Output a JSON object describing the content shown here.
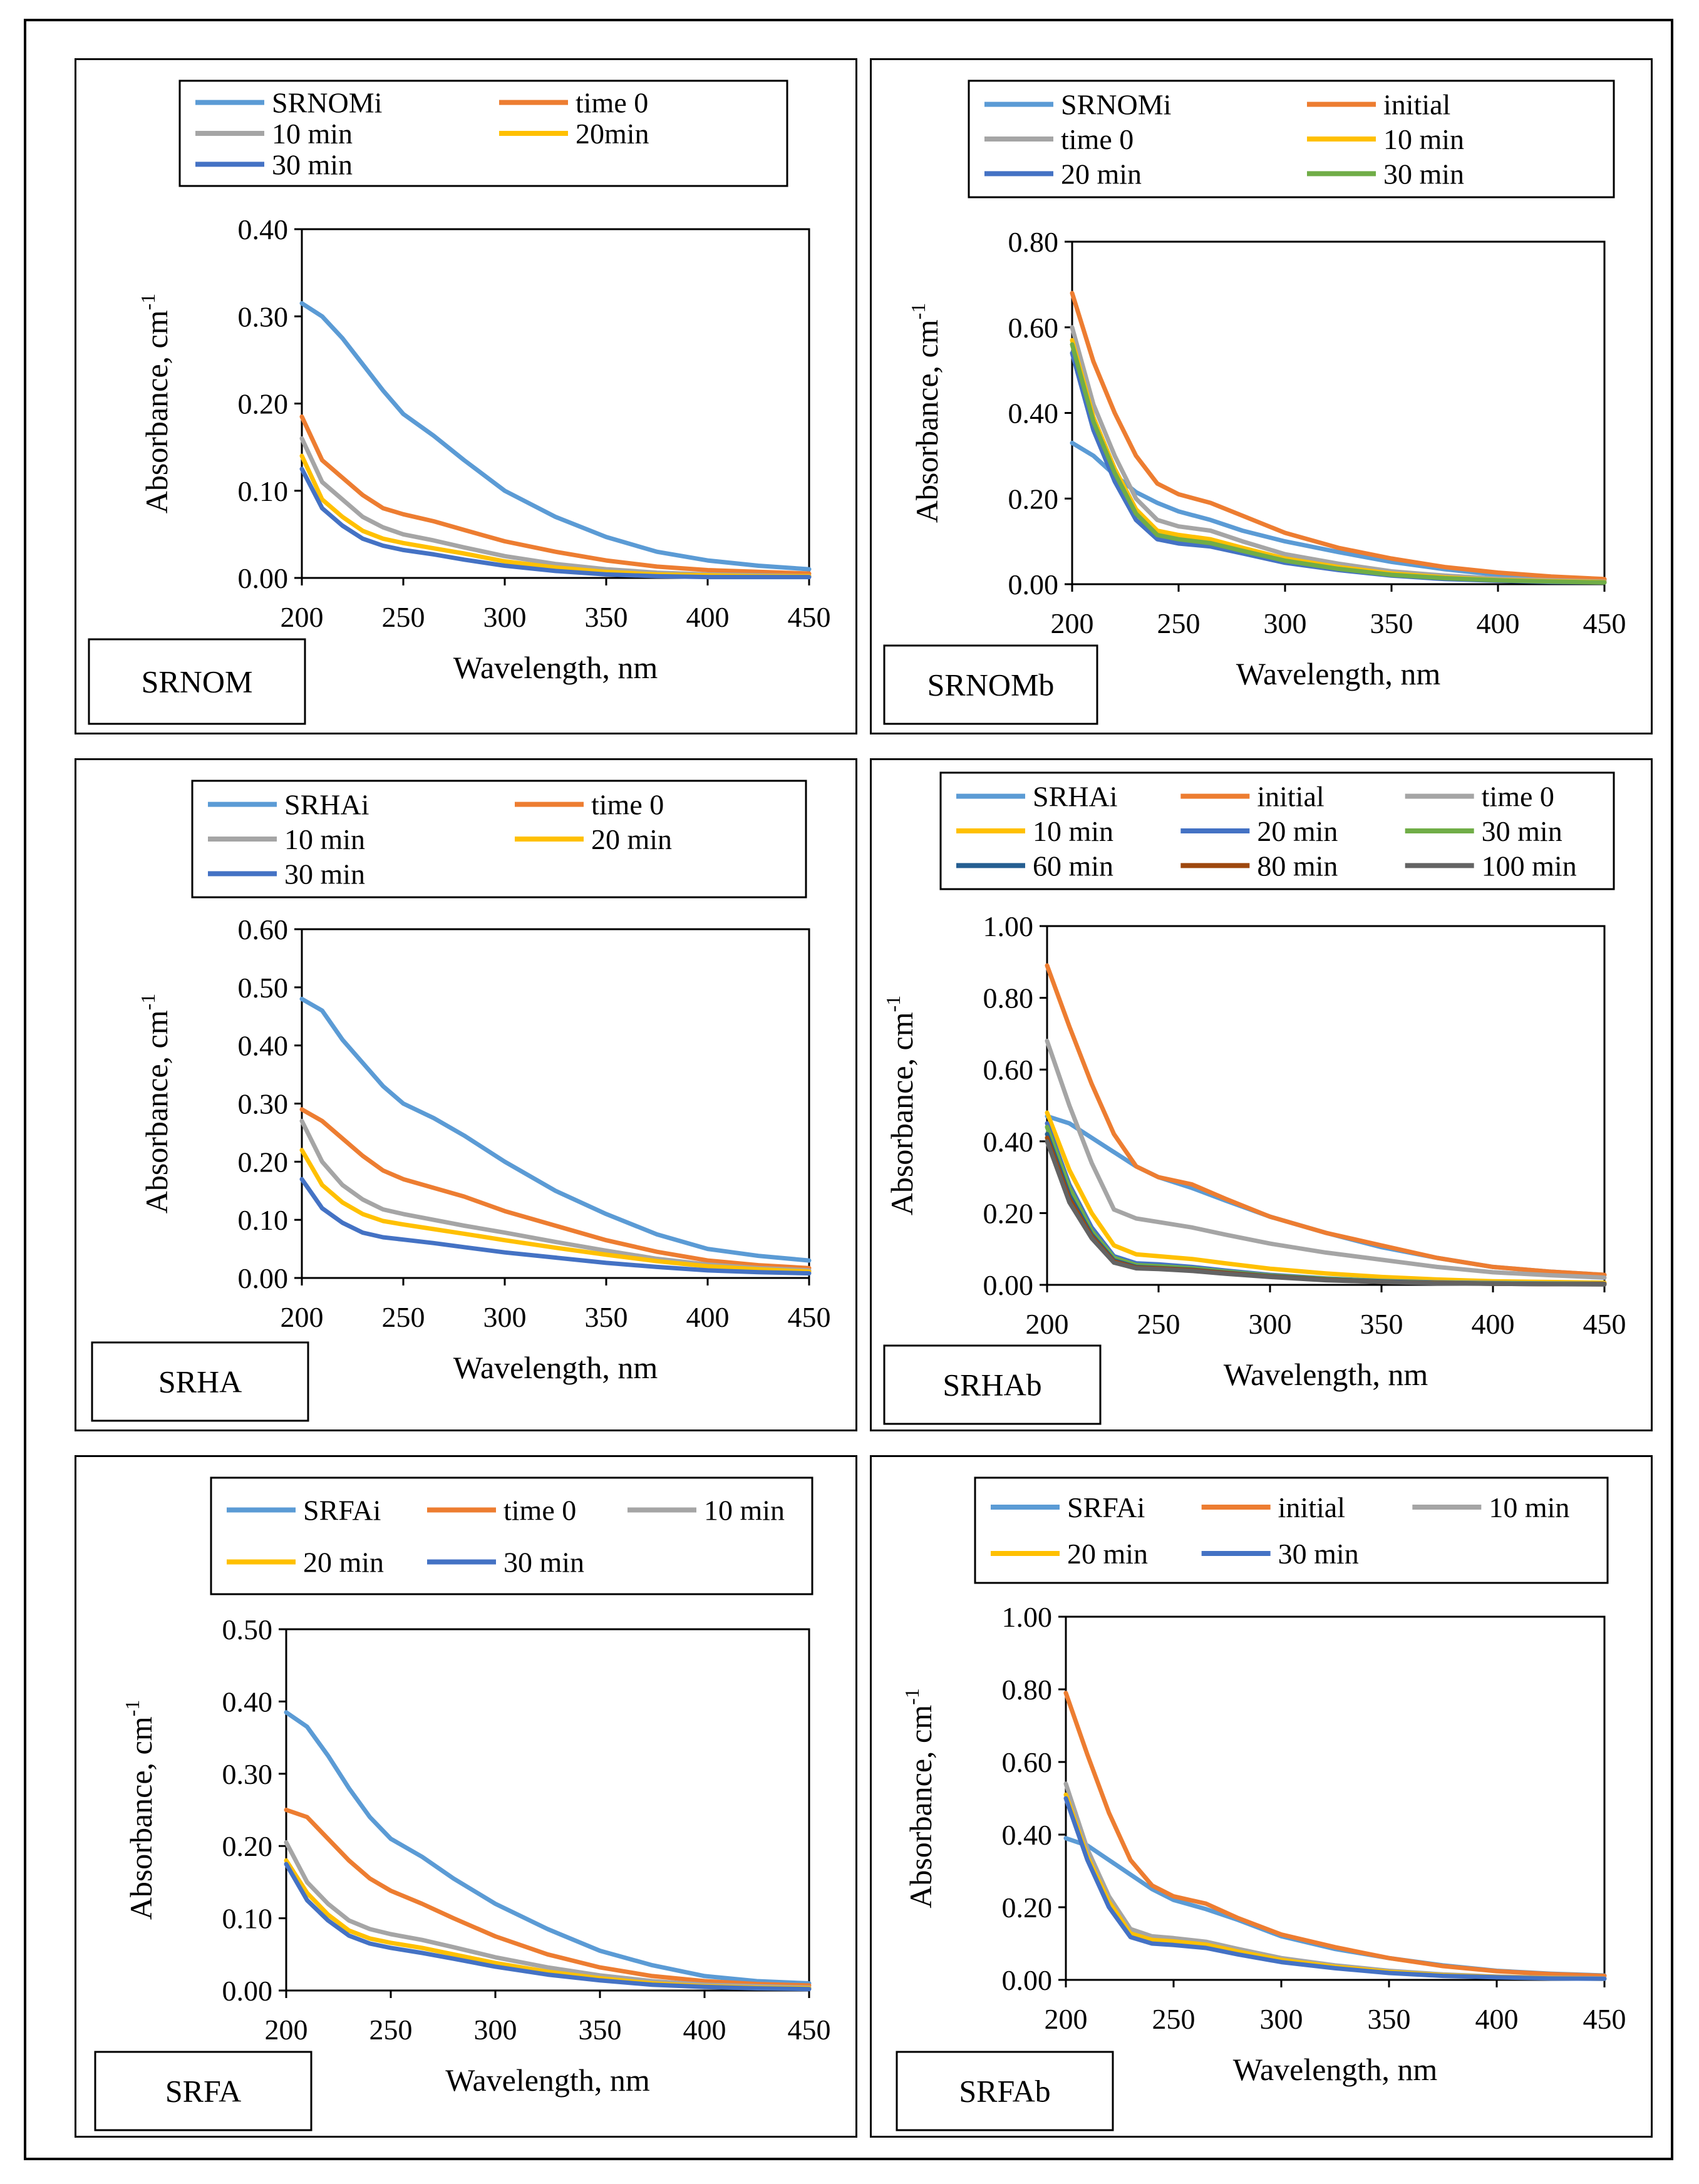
{
  "colors": {
    "SRNOMi": "#5b9bd5",
    "SRHAi": "#5b9bd5",
    "SRFAi": "#5b9bd5",
    "initial": "#ed7d31",
    "time 0": "#a5a5a5",
    "10 min": "#ffc000",
    "20 min": "#4472c4",
    "30 min": "#70ad47",
    "60 min": "#255e91",
    "80 min": "#9e480e",
    "100 min": "#636363"
  },
  "chart_data": [
    {
      "type": "line",
      "tag": "SRNOM",
      "xlabel": "Wavelength, nm",
      "ylabel": "Absorbance, cm",
      "ylabel_sup": "-1",
      "xlim": [
        200,
        450
      ],
      "ylim": [
        0,
        0.4
      ],
      "xticks": [
        "200",
        "250",
        "300",
        "350",
        "400",
        "450"
      ],
      "yticks": [
        "0.00",
        "0.10",
        "0.20",
        "0.30",
        "0.40"
      ],
      "legend_cols": 2,
      "x": [
        200,
        210,
        220,
        230,
        240,
        250,
        265,
        280,
        300,
        325,
        350,
        375,
        400,
        425,
        450
      ],
      "series": [
        {
          "name": "SRNOMi",
          "color": "#5b9bd5",
          "values": [
            0.315,
            0.3,
            0.275,
            0.245,
            0.215,
            0.188,
            0.163,
            0.135,
            0.1,
            0.07,
            0.047,
            0.03,
            0.02,
            0.014,
            0.01
          ]
        },
        {
          "name": "time 0",
          "color": "#ed7d31",
          "values": [
            0.185,
            0.135,
            0.115,
            0.095,
            0.08,
            0.073,
            0.065,
            0.055,
            0.042,
            0.03,
            0.02,
            0.013,
            0.009,
            0.007,
            0.005
          ]
        },
        {
          "name": "10 min",
          "color": "#a5a5a5",
          "values": [
            0.16,
            0.11,
            0.09,
            0.07,
            0.058,
            0.05,
            0.043,
            0.035,
            0.025,
            0.016,
            0.01,
            0.006,
            0.004,
            0.003,
            0.002
          ]
        },
        {
          "name": "20min",
          "color": "#ffc000",
          "values": [
            0.14,
            0.09,
            0.07,
            0.054,
            0.045,
            0.04,
            0.034,
            0.028,
            0.019,
            0.012,
            0.007,
            0.004,
            0.003,
            0.002,
            0.002
          ]
        },
        {
          "name": "30 min",
          "color": "#4472c4",
          "values": [
            0.125,
            0.08,
            0.06,
            0.045,
            0.037,
            0.032,
            0.027,
            0.021,
            0.014,
            0.008,
            0.004,
            0.002,
            0.001,
            0.001,
            0.001
          ]
        }
      ]
    },
    {
      "type": "line",
      "tag": "SRNOMb",
      "xlabel": "Wavelength, nm",
      "ylabel": "Absorbance, cm",
      "ylabel_sup": "-1",
      "xlim": [
        200,
        450
      ],
      "ylim": [
        0,
        0.8
      ],
      "xticks": [
        "200",
        "250",
        "300",
        "350",
        "400",
        "450"
      ],
      "yticks": [
        "0.00",
        "0.20",
        "0.40",
        "0.60",
        "0.80"
      ],
      "legend_cols": 2,
      "x": [
        200,
        210,
        220,
        230,
        240,
        250,
        265,
        280,
        300,
        325,
        350,
        375,
        400,
        425,
        450
      ],
      "series": [
        {
          "name": "SRNOMi",
          "color": "#5b9bd5",
          "values": [
            0.33,
            0.3,
            0.255,
            0.215,
            0.19,
            0.17,
            0.15,
            0.125,
            0.1,
            0.075,
            0.052,
            0.035,
            0.022,
            0.015,
            0.01
          ]
        },
        {
          "name": "initial",
          "color": "#ed7d31",
          "values": [
            0.68,
            0.52,
            0.4,
            0.3,
            0.235,
            0.21,
            0.19,
            0.16,
            0.12,
            0.085,
            0.06,
            0.04,
            0.027,
            0.018,
            0.012
          ]
        },
        {
          "name": "time 0",
          "color": "#a5a5a5",
          "values": [
            0.6,
            0.42,
            0.3,
            0.2,
            0.15,
            0.135,
            0.125,
            0.1,
            0.07,
            0.048,
            0.03,
            0.02,
            0.013,
            0.009,
            0.006
          ]
        },
        {
          "name": "10 min",
          "color": "#ffc000",
          "values": [
            0.57,
            0.39,
            0.27,
            0.175,
            0.125,
            0.115,
            0.105,
            0.085,
            0.06,
            0.04,
            0.025,
            0.016,
            0.01,
            0.007,
            0.005
          ]
        },
        {
          "name": "20 min",
          "color": "#4472c4",
          "values": [
            0.54,
            0.36,
            0.24,
            0.15,
            0.105,
            0.095,
            0.088,
            0.072,
            0.05,
            0.033,
            0.02,
            0.012,
            0.008,
            0.005,
            0.004
          ]
        },
        {
          "name": "30 min",
          "color": "#70ad47",
          "values": [
            0.56,
            0.38,
            0.26,
            0.165,
            0.115,
            0.105,
            0.096,
            0.078,
            0.055,
            0.036,
            0.022,
            0.014,
            0.009,
            0.006,
            0.004
          ]
        }
      ]
    },
    {
      "type": "line",
      "tag": "SRHA",
      "xlabel": "Wavelength, nm",
      "ylabel": "Absorbance, cm",
      "ylabel_sup": "-1",
      "xlim": [
        200,
        450
      ],
      "ylim": [
        0,
        0.6
      ],
      "xticks": [
        "200",
        "250",
        "300",
        "350",
        "400",
        "450"
      ],
      "yticks": [
        "0.00",
        "0.10",
        "0.20",
        "0.30",
        "0.40",
        "0.50",
        "0.60"
      ],
      "legend_cols": 2,
      "x": [
        200,
        210,
        220,
        230,
        240,
        250,
        265,
        280,
        300,
        325,
        350,
        375,
        400,
        425,
        450
      ],
      "series": [
        {
          "name": "SRHAi",
          "color": "#5b9bd5",
          "values": [
            0.48,
            0.46,
            0.41,
            0.37,
            0.33,
            0.3,
            0.275,
            0.245,
            0.2,
            0.15,
            0.11,
            0.075,
            0.05,
            0.038,
            0.03
          ]
        },
        {
          "name": "time 0",
          "color": "#ed7d31",
          "values": [
            0.29,
            0.27,
            0.24,
            0.21,
            0.185,
            0.17,
            0.155,
            0.14,
            0.115,
            0.09,
            0.065,
            0.045,
            0.03,
            0.022,
            0.017
          ]
        },
        {
          "name": "10 min",
          "color": "#a5a5a5",
          "values": [
            0.27,
            0.2,
            0.16,
            0.135,
            0.118,
            0.11,
            0.1,
            0.09,
            0.078,
            0.062,
            0.047,
            0.033,
            0.023,
            0.017,
            0.013
          ]
        },
        {
          "name": "20 min",
          "color": "#ffc000",
          "values": [
            0.22,
            0.16,
            0.13,
            0.11,
            0.098,
            0.092,
            0.084,
            0.076,
            0.065,
            0.052,
            0.04,
            0.029,
            0.02,
            0.015,
            0.011
          ]
        },
        {
          "name": "30 min",
          "color": "#4472c4",
          "values": [
            0.17,
            0.12,
            0.095,
            0.078,
            0.07,
            0.066,
            0.06,
            0.053,
            0.044,
            0.035,
            0.026,
            0.019,
            0.013,
            0.01,
            0.008
          ]
        }
      ]
    },
    {
      "type": "line",
      "tag": "SRHAb",
      "xlabel": "Wavelength, nm",
      "ylabel": "Absorbance, cm",
      "ylabel_sup": "-1",
      "xlim": [
        200,
        450
      ],
      "ylim": [
        0,
        1.0
      ],
      "xticks": [
        "200",
        "250",
        "300",
        "350",
        "400",
        "450"
      ],
      "yticks": [
        "0.00",
        "0.20",
        "0.40",
        "0.60",
        "0.80",
        "1.00"
      ],
      "legend_cols": 3,
      "x": [
        200,
        210,
        220,
        230,
        240,
        250,
        265,
        280,
        300,
        325,
        350,
        375,
        400,
        425,
        450
      ],
      "series": [
        {
          "name": "SRHAi",
          "color": "#5b9bd5",
          "values": [
            0.47,
            0.45,
            0.41,
            0.37,
            0.33,
            0.3,
            0.27,
            0.235,
            0.19,
            0.145,
            0.105,
            0.075,
            0.05,
            0.037,
            0.028
          ]
        },
        {
          "name": "initial",
          "color": "#ed7d31",
          "values": [
            0.89,
            0.72,
            0.56,
            0.42,
            0.33,
            0.3,
            0.28,
            0.24,
            0.19,
            0.145,
            0.11,
            0.075,
            0.05,
            0.037,
            0.028
          ]
        },
        {
          "name": "time 0",
          "color": "#a5a5a5",
          "values": [
            0.68,
            0.5,
            0.34,
            0.21,
            0.185,
            0.175,
            0.16,
            0.14,
            0.115,
            0.09,
            0.07,
            0.05,
            0.035,
            0.027,
            0.02
          ]
        },
        {
          "name": "10 min",
          "color": "#ffc000",
          "values": [
            0.48,
            0.32,
            0.2,
            0.11,
            0.085,
            0.08,
            0.072,
            0.06,
            0.045,
            0.032,
            0.022,
            0.015,
            0.01,
            0.008,
            0.006
          ]
        },
        {
          "name": "20 min",
          "color": "#4472c4",
          "values": [
            0.45,
            0.28,
            0.16,
            0.08,
            0.06,
            0.057,
            0.05,
            0.04,
            0.028,
            0.018,
            0.011,
            0.007,
            0.005,
            0.004,
            0.003
          ]
        },
        {
          "name": "30 min",
          "color": "#70ad47",
          "values": [
            0.44,
            0.27,
            0.15,
            0.075,
            0.055,
            0.052,
            0.046,
            0.037,
            0.026,
            0.017,
            0.01,
            0.006,
            0.004,
            0.003,
            0.002
          ]
        },
        {
          "name": "60 min",
          "color": "#255e91",
          "values": [
            0.42,
            0.25,
            0.14,
            0.068,
            0.05,
            0.047,
            0.042,
            0.034,
            0.024,
            0.015,
            0.009,
            0.005,
            0.003,
            0.002,
            0.002
          ]
        },
        {
          "name": "80 min",
          "color": "#9e480e",
          "values": [
            0.41,
            0.24,
            0.135,
            0.065,
            0.048,
            0.046,
            0.041,
            0.033,
            0.023,
            0.014,
            0.008,
            0.005,
            0.003,
            0.002,
            0.002
          ]
        },
        {
          "name": "100 min",
          "color": "#636363",
          "values": [
            0.4,
            0.23,
            0.13,
            0.062,
            0.046,
            0.044,
            0.039,
            0.031,
            0.022,
            0.013,
            0.008,
            0.004,
            0.003,
            0.002,
            0.001
          ]
        }
      ]
    },
    {
      "type": "line",
      "tag": "SRFA",
      "xlabel": "Wavelength, nm",
      "ylabel": "Absorbance, cm",
      "ylabel_sup": "-1",
      "xlim": [
        200,
        450
      ],
      "ylim": [
        0,
        0.5
      ],
      "xticks": [
        "200",
        "250",
        "300",
        "350",
        "400",
        "450"
      ],
      "yticks": [
        "0.00",
        "0.10",
        "0.20",
        "0.30",
        "0.40",
        "0.50"
      ],
      "legend_cols": 3,
      "x": [
        200,
        210,
        220,
        230,
        240,
        250,
        265,
        280,
        300,
        325,
        350,
        375,
        400,
        425,
        450
      ],
      "series": [
        {
          "name": "SRFAi",
          "color": "#5b9bd5",
          "values": [
            0.385,
            0.365,
            0.325,
            0.28,
            0.24,
            0.21,
            0.185,
            0.155,
            0.12,
            0.085,
            0.055,
            0.035,
            0.02,
            0.013,
            0.01
          ]
        },
        {
          "name": "time 0",
          "color": "#ed7d31",
          "values": [
            0.25,
            0.24,
            0.21,
            0.18,
            0.155,
            0.138,
            0.12,
            0.1,
            0.075,
            0.05,
            0.032,
            0.02,
            0.013,
            0.009,
            0.007
          ]
        },
        {
          "name": "10 min",
          "color": "#a5a5a5",
          "values": [
            0.205,
            0.15,
            0.12,
            0.097,
            0.085,
            0.078,
            0.07,
            0.06,
            0.046,
            0.032,
            0.021,
            0.013,
            0.008,
            0.006,
            0.004
          ]
        },
        {
          "name": "20 min",
          "color": "#ffc000",
          "values": [
            0.18,
            0.135,
            0.105,
            0.083,
            0.072,
            0.066,
            0.059,
            0.05,
            0.038,
            0.026,
            0.017,
            0.01,
            0.006,
            0.004,
            0.003
          ]
        },
        {
          "name": "30 min",
          "color": "#4472c4",
          "values": [
            0.175,
            0.125,
            0.097,
            0.076,
            0.065,
            0.059,
            0.052,
            0.044,
            0.033,
            0.022,
            0.014,
            0.008,
            0.005,
            0.003,
            0.002
          ]
        }
      ]
    },
    {
      "type": "line",
      "tag": "SRFAb",
      "xlabel": "Wavelength, nm",
      "ylabel": "Absorbance, cm",
      "ylabel_sup": "-1",
      "xlim": [
        200,
        450
      ],
      "ylim": [
        0,
        1.0
      ],
      "xticks": [
        "200",
        "250",
        "300",
        "350",
        "400",
        "450"
      ],
      "yticks": [
        "0.00",
        "0.20",
        "0.40",
        "0.60",
        "0.80",
        "1.00"
      ],
      "legend_cols": 3,
      "x": [
        200,
        210,
        220,
        230,
        240,
        250,
        265,
        280,
        300,
        325,
        350,
        375,
        400,
        425,
        450
      ],
      "series": [
        {
          "name": "SRFAi",
          "color": "#5b9bd5",
          "values": [
            0.39,
            0.37,
            0.33,
            0.29,
            0.25,
            0.22,
            0.195,
            0.165,
            0.12,
            0.085,
            0.06,
            0.04,
            0.025,
            0.017,
            0.012
          ]
        },
        {
          "name": "initial",
          "color": "#ed7d31",
          "values": [
            0.79,
            0.62,
            0.46,
            0.33,
            0.26,
            0.23,
            0.21,
            0.17,
            0.125,
            0.09,
            0.06,
            0.038,
            0.024,
            0.016,
            0.011
          ]
        },
        {
          "name": "10 min",
          "color": "#a5a5a5",
          "values": [
            0.54,
            0.36,
            0.23,
            0.14,
            0.12,
            0.115,
            0.105,
            0.085,
            0.06,
            0.04,
            0.025,
            0.015,
            0.009,
            0.006,
            0.004
          ]
        },
        {
          "name": "20 min",
          "color": "#ffc000",
          "values": [
            0.51,
            0.34,
            0.215,
            0.128,
            0.11,
            0.106,
            0.097,
            0.078,
            0.055,
            0.036,
            0.022,
            0.013,
            0.008,
            0.005,
            0.003
          ]
        },
        {
          "name": "30 min",
          "color": "#4472c4",
          "values": [
            0.5,
            0.33,
            0.2,
            0.118,
            0.1,
            0.096,
            0.088,
            0.07,
            0.049,
            0.032,
            0.019,
            0.011,
            0.007,
            0.004,
            0.003
          ]
        }
      ]
    }
  ]
}
